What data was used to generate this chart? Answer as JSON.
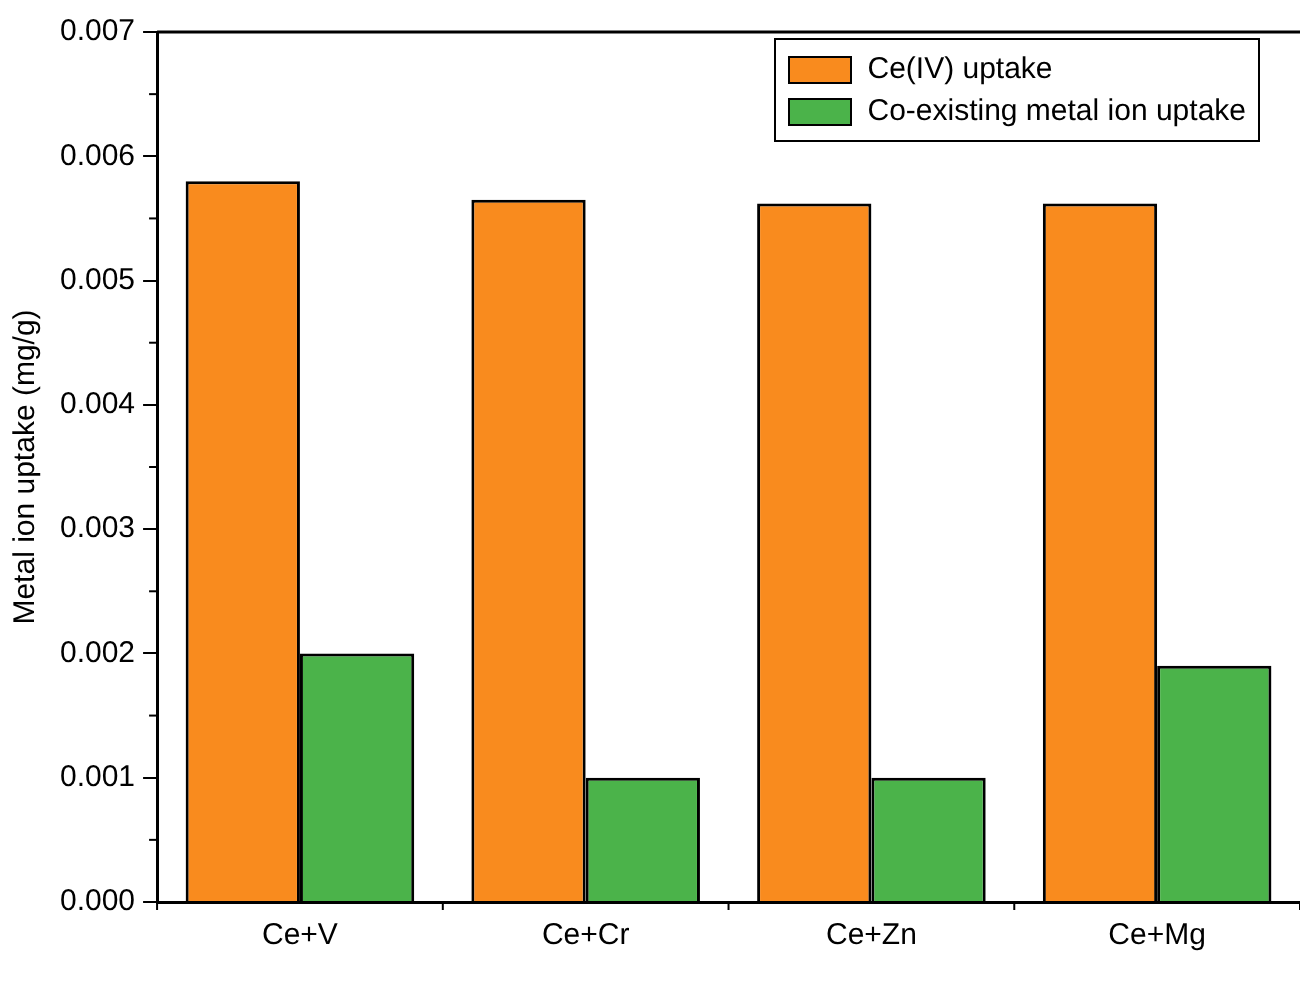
{
  "chart_data": {
    "type": "bar",
    "ylabel": "Metal ion uptake (mg/g)",
    "categories": [
      "Ce+V",
      "Ce+Cr",
      "Ce+Zn",
      "Ce+Mg"
    ],
    "series": [
      {
        "name": "Ce(IV) uptake",
        "color": "#f98b1e",
        "values": [
          0.0058,
          0.00565,
          0.00562,
          0.00562
        ]
      },
      {
        "name": "Co-existing metal ion uptake",
        "color": "#4bb34a",
        "values": [
          0.002,
          0.001,
          0.001,
          0.0019
        ]
      }
    ],
    "ylim": [
      0,
      0.007
    ],
    "yticks": [
      {
        "value": 0,
        "label": "0.000"
      },
      {
        "value": 0.001,
        "label": "0.001"
      },
      {
        "value": 0.002,
        "label": "0.002"
      },
      {
        "value": 0.003,
        "label": "0.003"
      },
      {
        "value": 0.004,
        "label": "0.004"
      },
      {
        "value": 0.005,
        "label": "0.005"
      },
      {
        "value": 0.006,
        "label": "0.006"
      },
      {
        "value": 0.007,
        "label": "0.007"
      }
    ],
    "grid": false,
    "legend": "top right"
  }
}
